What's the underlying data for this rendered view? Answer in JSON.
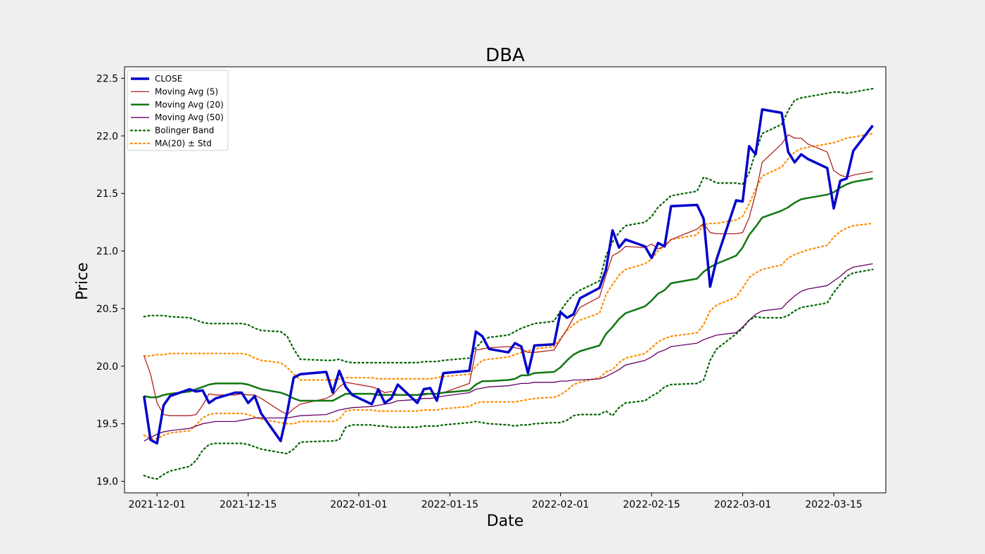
{
  "chart_data": {
    "type": "line",
    "title": "DBA",
    "xlabel": "Date",
    "ylabel": "Price",
    "xlim": [
      "2021-11-26",
      "2022-03-23"
    ],
    "ylim": [
      18.9,
      22.6
    ],
    "x_ticks": [
      "2021-12-01",
      "2021-12-15",
      "2022-01-01",
      "2022-01-15",
      "2022-02-01",
      "2022-02-15",
      "2022-03-01",
      "2022-03-15"
    ],
    "y_ticks": [
      19.0,
      19.5,
      20.0,
      20.5,
      21.0,
      21.5,
      22.0,
      22.5
    ],
    "y_tick_labels": [
      "19.0",
      "19.5",
      "20.0",
      "20.5",
      "21.0",
      "21.5",
      "22.0",
      "22.5"
    ],
    "grid": false,
    "legend_position": "top-left",
    "dates": [
      "2021-11-29",
      "2021-11-30",
      "2021-12-01",
      "2021-12-02",
      "2021-12-03",
      "2021-12-06",
      "2021-12-07",
      "2021-12-08",
      "2021-12-09",
      "2021-12-10",
      "2021-12-13",
      "2021-12-14",
      "2021-12-15",
      "2021-12-16",
      "2021-12-17",
      "2021-12-20",
      "2021-12-21",
      "2021-12-22",
      "2021-12-23",
      "2021-12-27",
      "2021-12-28",
      "2021-12-29",
      "2021-12-30",
      "2021-12-31",
      "2022-01-03",
      "2022-01-04",
      "2022-01-05",
      "2022-01-06",
      "2022-01-07",
      "2022-01-10",
      "2022-01-11",
      "2022-01-12",
      "2022-01-13",
      "2022-01-14",
      "2022-01-18",
      "2022-01-19",
      "2022-01-20",
      "2022-01-21",
      "2022-01-24",
      "2022-01-25",
      "2022-01-26",
      "2022-01-27",
      "2022-01-28",
      "2022-01-31",
      "2022-02-01",
      "2022-02-02",
      "2022-02-03",
      "2022-02-04",
      "2022-02-07",
      "2022-02-08",
      "2022-02-09",
      "2022-02-10",
      "2022-02-11",
      "2022-02-14",
      "2022-02-15",
      "2022-02-16",
      "2022-02-17",
      "2022-02-18",
      "2022-02-22",
      "2022-02-23",
      "2022-02-24",
      "2022-02-25",
      "2022-02-28",
      "2022-03-01",
      "2022-03-02",
      "2022-03-03",
      "2022-03-04",
      "2022-03-07",
      "2022-03-08",
      "2022-03-09",
      "2022-03-10",
      "2022-03-11",
      "2022-03-14",
      "2022-03-15",
      "2022-03-16",
      "2022-03-17",
      "2022-03-18",
      "2022-03-21"
    ],
    "series": [
      {
        "name": "CLOSE",
        "color": "#0000cc",
        "style": "solid",
        "values": [
          19.74,
          19.36,
          19.33,
          19.66,
          19.74,
          19.8,
          19.78,
          19.79,
          19.68,
          19.72,
          19.77,
          19.77,
          19.68,
          19.74,
          19.59,
          19.35,
          19.6,
          19.9,
          19.93,
          19.95,
          19.77,
          19.96,
          19.82,
          19.75,
          19.67,
          19.8,
          19.68,
          19.72,
          19.84,
          19.68,
          19.8,
          19.81,
          19.7,
          19.94,
          19.96,
          20.3,
          20.26,
          20.15,
          20.12,
          20.2,
          20.17,
          19.94,
          20.18,
          20.19,
          20.47,
          20.42,
          20.45,
          20.59,
          20.68,
          20.84,
          21.18,
          21.03,
          21.1,
          21.04,
          20.94,
          21.07,
          21.04,
          21.39,
          21.4,
          21.28,
          20.69,
          20.93,
          21.44,
          21.43,
          21.91,
          21.84,
          22.23,
          22.2,
          21.86,
          21.77,
          21.84,
          21.8,
          21.72,
          21.37,
          21.61,
          21.63,
          21.87,
          22.09
        ]
      },
      {
        "name": "Moving Avg (5)",
        "color": "#b22222",
        "style": "solid",
        "values": [
          20.09,
          19.93,
          19.68,
          19.58,
          19.57,
          19.57,
          19.58,
          19.66,
          19.76,
          19.75,
          19.75,
          19.76,
          19.75,
          19.75,
          19.72,
          19.61,
          19.58,
          19.63,
          19.67,
          19.72,
          19.75,
          19.82,
          19.86,
          19.85,
          19.82,
          19.8,
          19.77,
          19.78,
          19.75,
          19.75,
          19.75,
          19.76,
          19.76,
          19.77,
          19.85,
          20.14,
          20.15,
          20.16,
          20.17,
          20.16,
          20.15,
          20.12,
          20.12,
          20.14,
          20.23,
          20.32,
          20.42,
          20.51,
          20.6,
          20.79,
          20.96,
          20.99,
          21.04,
          21.03,
          21.06,
          21.02,
          21.04,
          21.1,
          21.19,
          21.24,
          21.16,
          21.15,
          21.15,
          21.16,
          21.29,
          21.5,
          21.77,
          21.93,
          22.01,
          21.98,
          21.98,
          21.93,
          21.86,
          21.7,
          21.66,
          21.64,
          21.66,
          21.69
        ]
      },
      {
        "name": "Moving Avg (20)",
        "color": "#117711",
        "style": "solid",
        "values": [
          19.74,
          19.73,
          19.73,
          19.75,
          19.76,
          19.78,
          19.8,
          19.82,
          19.84,
          19.85,
          19.85,
          19.85,
          19.84,
          19.82,
          19.8,
          19.77,
          19.75,
          19.72,
          19.7,
          19.7,
          19.7,
          19.73,
          19.76,
          19.76,
          19.76,
          19.75,
          19.75,
          19.75,
          19.75,
          19.75,
          19.76,
          19.76,
          19.76,
          19.77,
          19.79,
          19.84,
          19.87,
          19.87,
          19.88,
          19.89,
          19.92,
          19.92,
          19.94,
          19.95,
          19.99,
          20.05,
          20.1,
          20.13,
          20.18,
          20.28,
          20.34,
          20.41,
          20.46,
          20.52,
          20.57,
          20.63,
          20.66,
          20.72,
          20.76,
          20.82,
          20.86,
          20.89,
          20.96,
          21.03,
          21.14,
          21.21,
          21.29,
          21.35,
          21.38,
          21.42,
          21.45,
          21.46,
          21.49,
          21.51,
          21.55,
          21.58,
          21.6,
          21.63
        ]
      },
      {
        "name": "Moving Avg (50)",
        "color": "#660066",
        "style": "solid",
        "values": [
          19.35,
          19.38,
          19.41,
          19.43,
          19.44,
          19.46,
          19.48,
          19.5,
          19.51,
          19.52,
          19.52,
          19.53,
          19.54,
          19.55,
          19.55,
          19.55,
          19.55,
          19.56,
          19.57,
          19.58,
          19.6,
          19.62,
          19.63,
          19.64,
          19.65,
          19.66,
          19.67,
          19.68,
          19.7,
          19.71,
          19.72,
          19.72,
          19.73,
          19.74,
          19.77,
          19.8,
          19.81,
          19.82,
          19.83,
          19.84,
          19.85,
          19.85,
          19.86,
          19.86,
          19.87,
          19.87,
          19.88,
          19.88,
          19.89,
          19.91,
          19.94,
          19.97,
          20.01,
          20.05,
          20.08,
          20.12,
          20.14,
          20.17,
          20.2,
          20.23,
          20.25,
          20.27,
          20.29,
          20.34,
          20.4,
          20.45,
          20.48,
          20.5,
          20.56,
          20.61,
          20.65,
          20.67,
          20.7,
          20.74,
          20.78,
          20.83,
          20.86,
          20.89
        ]
      },
      {
        "name": "Bolinger Band",
        "color": "#006400",
        "style": "dotted",
        "upper": [
          20.43,
          20.44,
          20.44,
          20.44,
          20.43,
          20.42,
          20.4,
          20.38,
          20.37,
          20.37,
          20.37,
          20.37,
          20.36,
          20.33,
          20.31,
          20.3,
          20.26,
          20.15,
          20.06,
          20.05,
          20.05,
          20.06,
          20.04,
          20.03,
          20.03,
          20.03,
          20.03,
          20.03,
          20.03,
          20.03,
          20.04,
          20.04,
          20.04,
          20.05,
          20.07,
          20.16,
          20.22,
          20.25,
          20.27,
          20.3,
          20.33,
          20.35,
          20.37,
          20.39,
          20.48,
          20.56,
          20.62,
          20.66,
          20.74,
          20.96,
          21.08,
          21.16,
          21.22,
          21.25,
          21.3,
          21.38,
          21.43,
          21.48,
          21.52,
          21.64,
          21.62,
          21.59,
          21.59,
          21.58,
          21.68,
          21.86,
          22.02,
          22.1,
          22.22,
          22.31,
          22.33,
          22.34,
          22.37,
          22.38,
          22.38,
          22.37,
          22.38,
          22.41
        ],
        "lower": [
          19.05,
          19.03,
          19.02,
          19.06,
          19.09,
          19.13,
          19.18,
          19.27,
          19.32,
          19.33,
          19.33,
          19.33,
          19.32,
          19.3,
          19.28,
          19.25,
          19.24,
          19.28,
          19.34,
          19.35,
          19.35,
          19.36,
          19.47,
          19.49,
          19.49,
          19.48,
          19.48,
          19.47,
          19.47,
          19.47,
          19.48,
          19.48,
          19.48,
          19.49,
          19.51,
          19.52,
          19.51,
          19.5,
          19.49,
          19.48,
          19.49,
          19.49,
          19.5,
          19.51,
          19.51,
          19.53,
          19.57,
          19.58,
          19.58,
          19.61,
          19.57,
          19.64,
          19.68,
          19.7,
          19.74,
          19.77,
          19.82,
          19.84,
          19.85,
          19.88,
          20.05,
          20.15,
          20.28,
          20.33,
          20.4,
          20.43,
          20.42,
          20.42,
          20.44,
          20.48,
          20.51,
          20.52,
          20.55,
          20.64,
          20.71,
          20.78,
          20.81,
          20.84
        ]
      },
      {
        "name": "MA(20) ± Std",
        "color": "#ff8c00",
        "style": "dotted",
        "upper": [
          20.09,
          20.09,
          20.1,
          20.1,
          20.11,
          20.11,
          20.11,
          20.11,
          20.11,
          20.11,
          20.11,
          20.11,
          20.1,
          20.07,
          20.05,
          20.03,
          19.99,
          19.93,
          19.88,
          19.88,
          19.88,
          19.89,
          19.9,
          19.9,
          19.9,
          19.89,
          19.89,
          19.89,
          19.89,
          19.89,
          19.89,
          19.89,
          19.9,
          19.91,
          19.93,
          20.0,
          20.05,
          20.06,
          20.08,
          20.1,
          20.12,
          20.13,
          20.15,
          20.17,
          20.24,
          20.31,
          20.36,
          20.4,
          20.46,
          20.62,
          20.71,
          20.79,
          20.84,
          20.89,
          20.93,
          21.0,
          21.05,
          21.1,
          21.14,
          21.23,
          21.24,
          21.24,
          21.27,
          21.3,
          21.41,
          21.54,
          21.65,
          21.73,
          21.8,
          21.86,
          21.89,
          21.9,
          21.93,
          21.94,
          21.96,
          21.98,
          21.99,
          22.02
        ],
        "lower": [
          19.4,
          19.37,
          19.37,
          19.4,
          19.42,
          19.44,
          19.49,
          19.55,
          19.58,
          19.59,
          19.59,
          19.59,
          19.58,
          19.56,
          19.54,
          19.51,
          19.5,
          19.5,
          19.52,
          19.52,
          19.52,
          19.54,
          19.61,
          19.62,
          19.62,
          19.61,
          19.61,
          19.61,
          19.61,
          19.61,
          19.62,
          19.62,
          19.62,
          19.63,
          19.65,
          19.68,
          19.69,
          19.69,
          19.69,
          19.69,
          19.7,
          19.71,
          19.72,
          19.73,
          19.75,
          19.79,
          19.84,
          19.86,
          19.9,
          19.95,
          19.97,
          20.03,
          20.07,
          20.11,
          20.16,
          20.21,
          20.24,
          20.26,
          20.29,
          20.36,
          20.48,
          20.53,
          20.6,
          20.68,
          20.77,
          20.81,
          20.84,
          20.88,
          20.94,
          20.97,
          20.99,
          21.01,
          21.05,
          21.12,
          21.17,
          21.2,
          21.22,
          21.24
        ]
      }
    ]
  }
}
